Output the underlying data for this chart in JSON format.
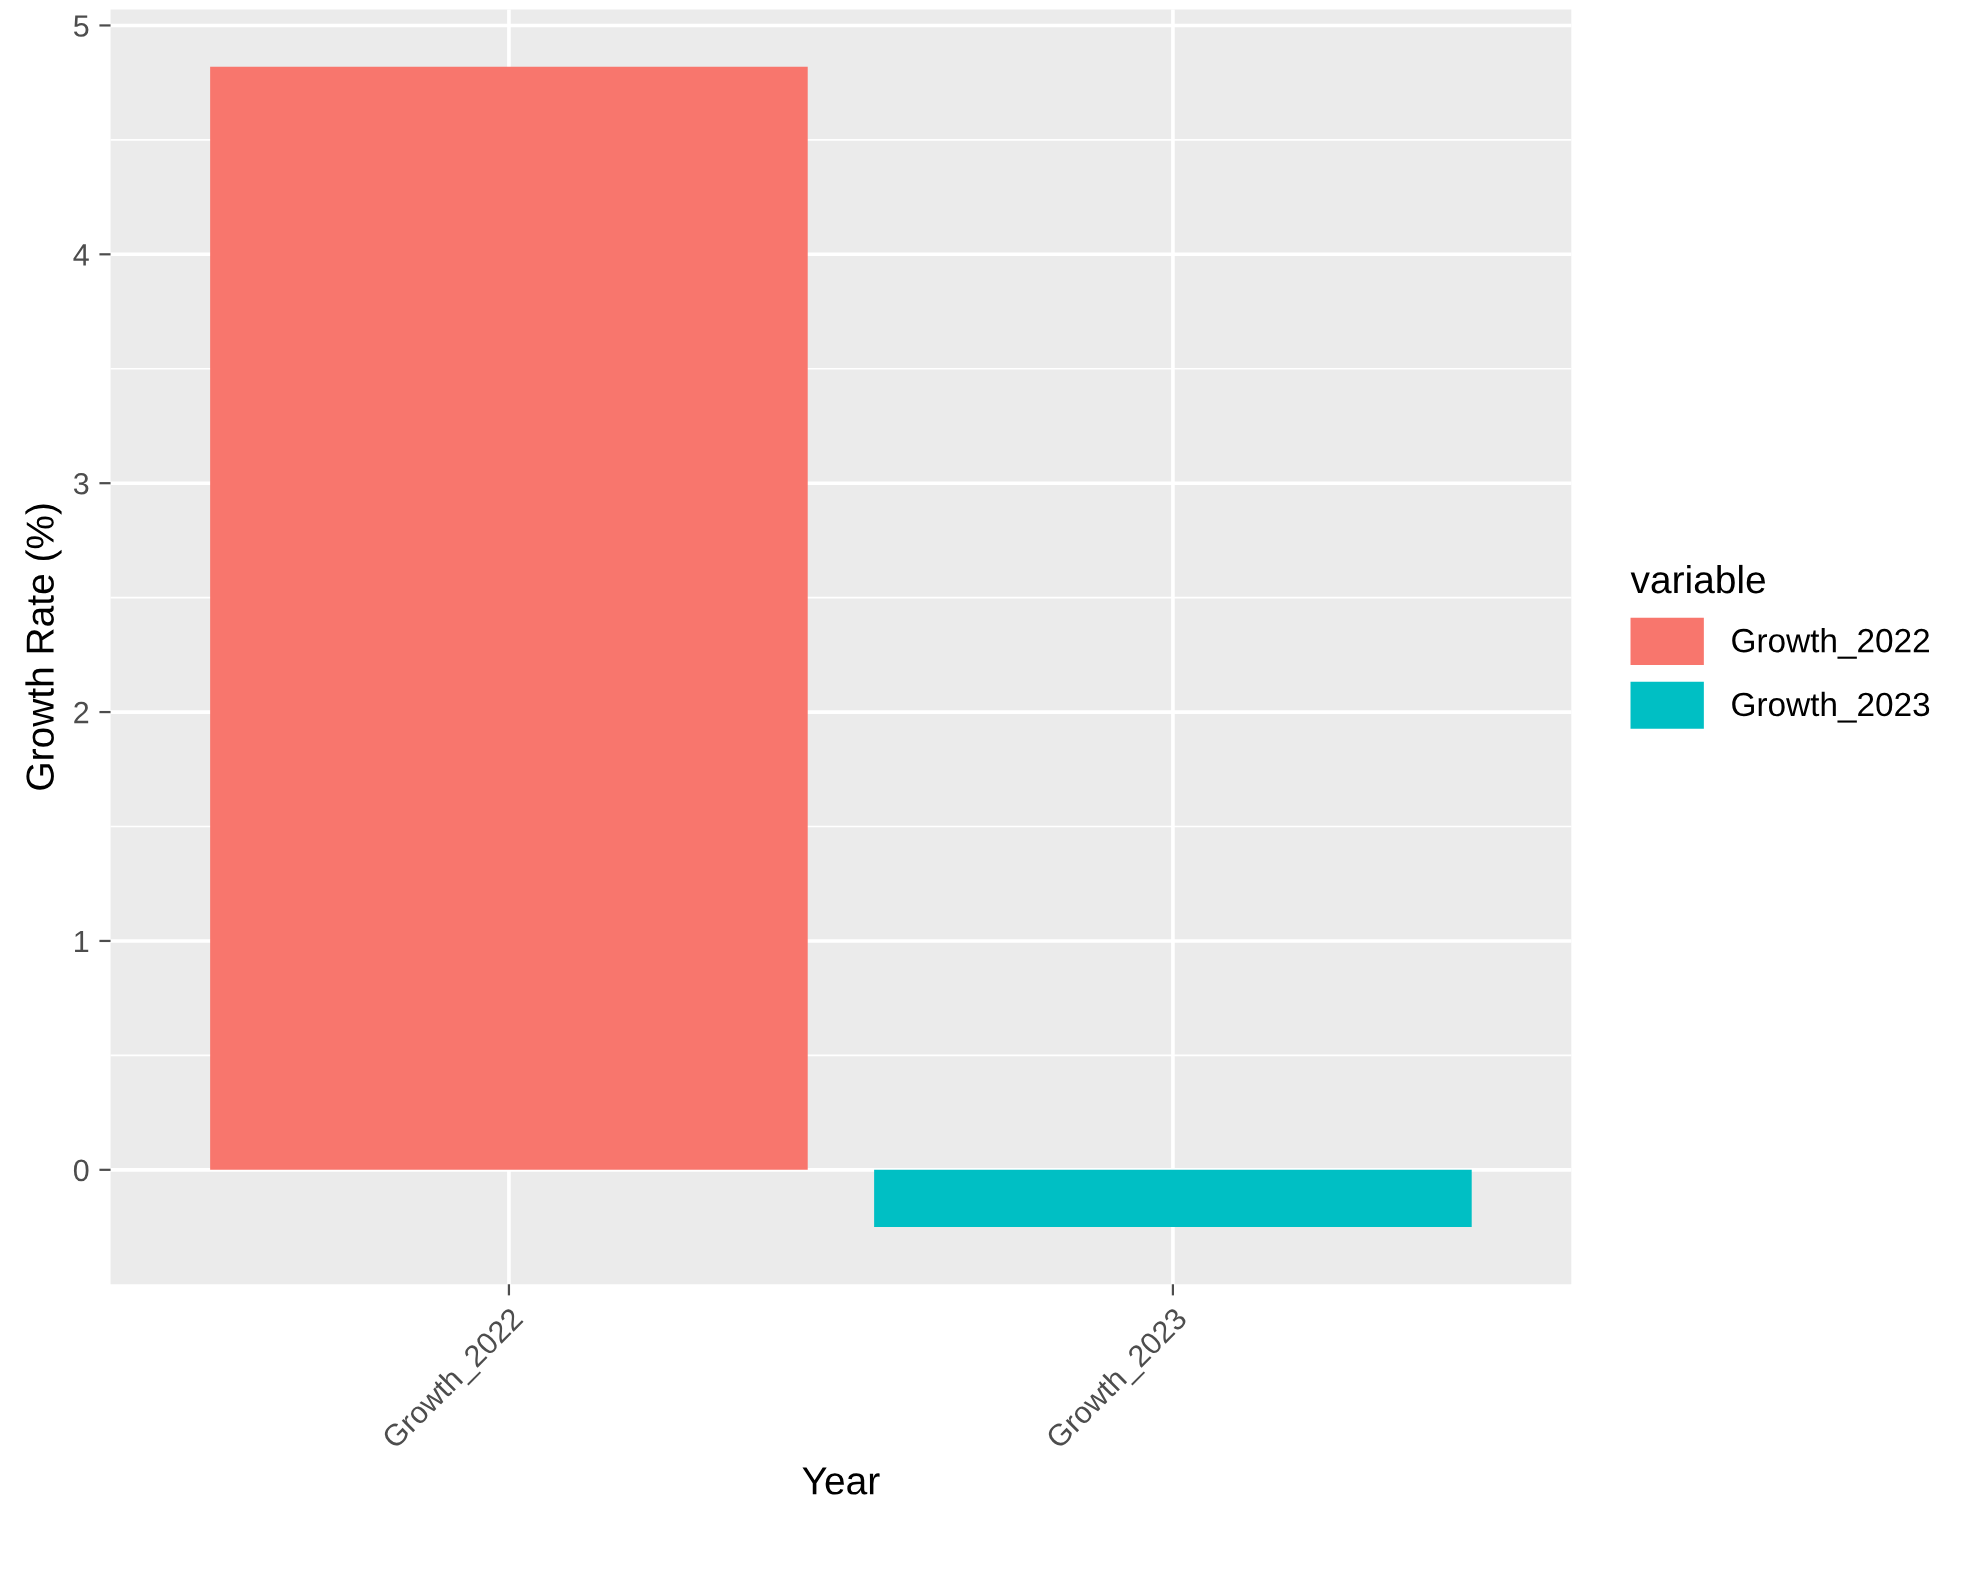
{
  "chart_data": {
    "type": "bar",
    "xlabel": "Year",
    "ylabel": "Growth Rate (%)",
    "legend_title": "variable",
    "categories": [
      "Growth_2022",
      "Growth_2023"
    ],
    "series": [
      {
        "name": "Growth_2022",
        "color": "#f8766d",
        "values": [
          4.82,
          null
        ]
      },
      {
        "name": "Growth_2023",
        "color": "#00bfc4",
        "values": [
          null,
          -0.25
        ]
      }
    ],
    "ylim": [
      -0.5,
      5.07
    ],
    "yticks": [
      0,
      1,
      2,
      3,
      4,
      5
    ],
    "grid": true,
    "legend": "right"
  }
}
